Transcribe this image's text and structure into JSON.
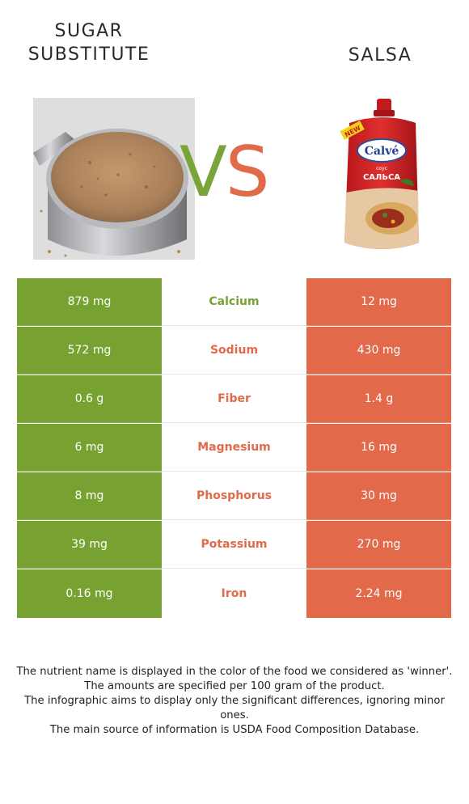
{
  "left_food": {
    "name": "SUGAR SUBSTITUTE",
    "color": "#77a232"
  },
  "right_food": {
    "name": "SALSA",
    "color": "#e2694a"
  },
  "vs": {
    "v": "V",
    "s": "S"
  },
  "package": {
    "new_label": "NEW",
    "brand": "Calvé",
    "product": "САЛЬСА",
    "small_text": "соус"
  },
  "nutrients": [
    {
      "name": "Calcium",
      "left": "879 mg",
      "right": "12 mg",
      "winner": "left"
    },
    {
      "name": "Sodium",
      "left": "572 mg",
      "right": "430 mg",
      "winner": "right"
    },
    {
      "name": "Fiber",
      "left": "0.6 g",
      "right": "1.4 g",
      "winner": "right"
    },
    {
      "name": "Magnesium",
      "left": "6 mg",
      "right": "16 mg",
      "winner": "right"
    },
    {
      "name": "Phosphorus",
      "left": "8 mg",
      "right": "30 mg",
      "winner": "right"
    },
    {
      "name": "Potassium",
      "left": "39 mg",
      "right": "270 mg",
      "winner": "right"
    },
    {
      "name": "Iron",
      "left": "0.16 mg",
      "right": "2.24 mg",
      "winner": "right"
    }
  ],
  "footnote": [
    "The nutrient name is displayed in the color of the food we considered as 'winner'.",
    "The amounts are specified per 100 gram of the product.",
    "The infographic aims to display only the significant differences, ignoring minor ones.",
    "The main source of information is USDA Food Composition Database."
  ]
}
